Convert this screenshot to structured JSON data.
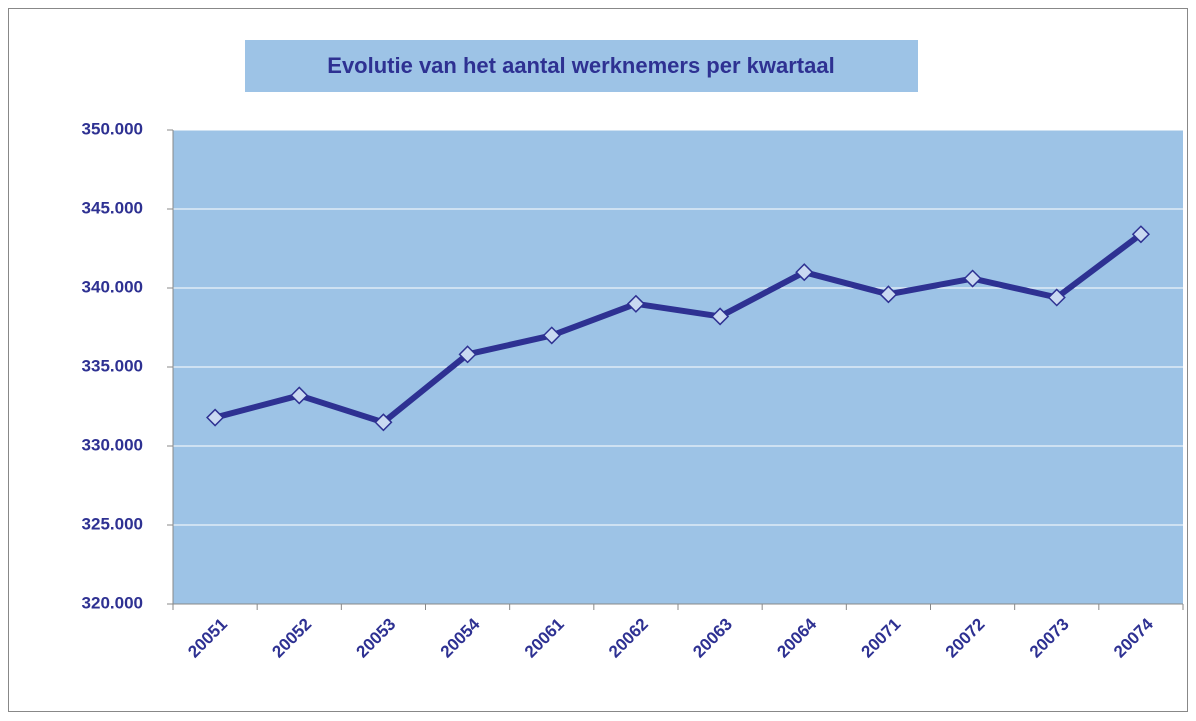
{
  "chart_data": {
    "type": "line",
    "title": "Evolutie van het aantal werknemers per kwartaal",
    "categories": [
      "20051",
      "20052",
      "20053",
      "20054",
      "20061",
      "20062",
      "20063",
      "20064",
      "20071",
      "20072",
      "20073",
      "20074"
    ],
    "values": [
      331800,
      333200,
      331500,
      335800,
      337000,
      339000,
      338200,
      341000,
      339600,
      340600,
      339400,
      343400
    ],
    "color": "#2e3192",
    "marker_fill": "#c9d9f1",
    "plot_background": "#9dc3e6",
    "ylim": [
      320000,
      350000
    ],
    "yticks": [
      {
        "value": 320000,
        "label": "320.000"
      },
      {
        "value": 325000,
        "label": "325.000"
      },
      {
        "value": 330000,
        "label": "330.000"
      },
      {
        "value": 335000,
        "label": "335.000"
      },
      {
        "value": 340000,
        "label": "340.000"
      },
      {
        "value": 345000,
        "label": "345.000"
      },
      {
        "value": 350000,
        "label": "350.000"
      }
    ],
    "grid": true
  }
}
